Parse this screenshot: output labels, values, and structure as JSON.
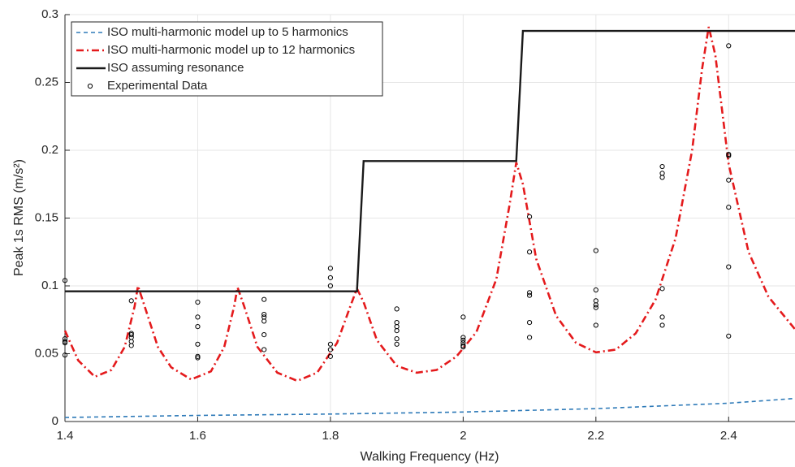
{
  "chart_data": {
    "type": "line",
    "x_label": "Walking Frequency (Hz)",
    "y_label": "Peak 1s RMS (m/s²)",
    "xlim": [
      1.4,
      2.5
    ],
    "ylim": [
      0,
      0.3
    ],
    "xticks": [
      1.4,
      1.6,
      1.8,
      2,
      2.2,
      2.4
    ],
    "yticks": [
      0,
      0.05,
      0.1,
      0.15,
      0.2,
      0.25,
      0.3
    ],
    "grid": true,
    "legend": "upper left",
    "series": [
      {
        "name": "ISO multi-harmonic model up to 5 harmonics",
        "color": "#2e7ab8",
        "style": "dashed",
        "x": [
          1.4,
          1.6,
          1.8,
          2.0,
          2.2,
          2.4,
          2.5
        ],
        "values": [
          0.003,
          0.0045,
          0.0055,
          0.007,
          0.0095,
          0.0135,
          0.017
        ]
      },
      {
        "name": "ISO multi-harmonic model up to 12 harmonics",
        "color": "#e41a1c",
        "style": "dashdot",
        "x": [
          1.4,
          1.42,
          1.445,
          1.47,
          1.49,
          1.505,
          1.51,
          1.52,
          1.54,
          1.56,
          1.59,
          1.62,
          1.64,
          1.655,
          1.66,
          1.67,
          1.69,
          1.72,
          1.75,
          1.78,
          1.81,
          1.83,
          1.84,
          1.85,
          1.87,
          1.9,
          1.93,
          1.96,
          1.99,
          2.02,
          2.05,
          2.07,
          2.08,
          2.09,
          2.11,
          2.14,
          2.17,
          2.2,
          2.23,
          2.26,
          2.29,
          2.32,
          2.345,
          2.36,
          2.37,
          2.38,
          2.4,
          2.43,
          2.46,
          2.5
        ],
        "values": [
          0.067,
          0.045,
          0.033,
          0.038,
          0.055,
          0.085,
          0.1,
          0.085,
          0.055,
          0.04,
          0.031,
          0.037,
          0.055,
          0.085,
          0.099,
          0.085,
          0.055,
          0.036,
          0.03,
          0.036,
          0.058,
          0.085,
          0.098,
          0.088,
          0.06,
          0.041,
          0.036,
          0.038,
          0.048,
          0.066,
          0.105,
          0.16,
          0.191,
          0.175,
          0.12,
          0.078,
          0.058,
          0.051,
          0.053,
          0.065,
          0.09,
          0.135,
          0.2,
          0.26,
          0.291,
          0.27,
          0.19,
          0.125,
          0.092,
          0.068
        ]
      },
      {
        "name": "ISO assuming resonance",
        "color": "#1a1a1a",
        "style": "solid",
        "x": [
          1.4,
          1.84,
          1.85,
          2.08,
          2.09,
          2.5
        ],
        "values": [
          0.096,
          0.096,
          0.192,
          0.192,
          0.288,
          0.288
        ]
      },
      {
        "name": "Experimental Data",
        "color": "#000000",
        "style": "marker",
        "x": [
          1.4,
          1.4,
          1.4,
          1.4,
          1.4,
          1.5,
          1.5,
          1.5,
          1.5,
          1.5,
          1.5,
          1.6,
          1.6,
          1.6,
          1.6,
          1.6,
          1.6,
          1.7,
          1.7,
          1.7,
          1.7,
          1.7,
          1.7,
          1.8,
          1.8,
          1.8,
          1.8,
          1.8,
          1.8,
          1.9,
          1.9,
          1.9,
          1.9,
          1.9,
          1.9,
          2.0,
          2.0,
          2.0,
          2.0,
          2.0,
          2.0,
          2.1,
          2.1,
          2.1,
          2.1,
          2.1,
          2.1,
          2.2,
          2.2,
          2.2,
          2.2,
          2.2,
          2.2,
          2.3,
          2.3,
          2.3,
          2.3,
          2.3,
          2.3,
          2.4,
          2.4,
          2.4,
          2.4,
          2.4,
          2.4,
          2.4
        ],
        "values": [
          0.104,
          0.061,
          0.059,
          0.058,
          0.049,
          0.089,
          0.065,
          0.064,
          0.062,
          0.059,
          0.056,
          0.088,
          0.077,
          0.07,
          0.057,
          0.048,
          0.047,
          0.09,
          0.079,
          0.077,
          0.074,
          0.064,
          0.053,
          0.113,
          0.106,
          0.1,
          0.057,
          0.053,
          0.048,
          0.083,
          0.073,
          0.07,
          0.067,
          0.061,
          0.057,
          0.077,
          0.062,
          0.06,
          0.058,
          0.056,
          0.055,
          0.151,
          0.125,
          0.095,
          0.093,
          0.073,
          0.062,
          0.126,
          0.097,
          0.089,
          0.086,
          0.084,
          0.071,
          0.188,
          0.183,
          0.18,
          0.098,
          0.077,
          0.071,
          0.277,
          0.197,
          0.196,
          0.178,
          0.158,
          0.114,
          0.063
        ]
      }
    ]
  }
}
